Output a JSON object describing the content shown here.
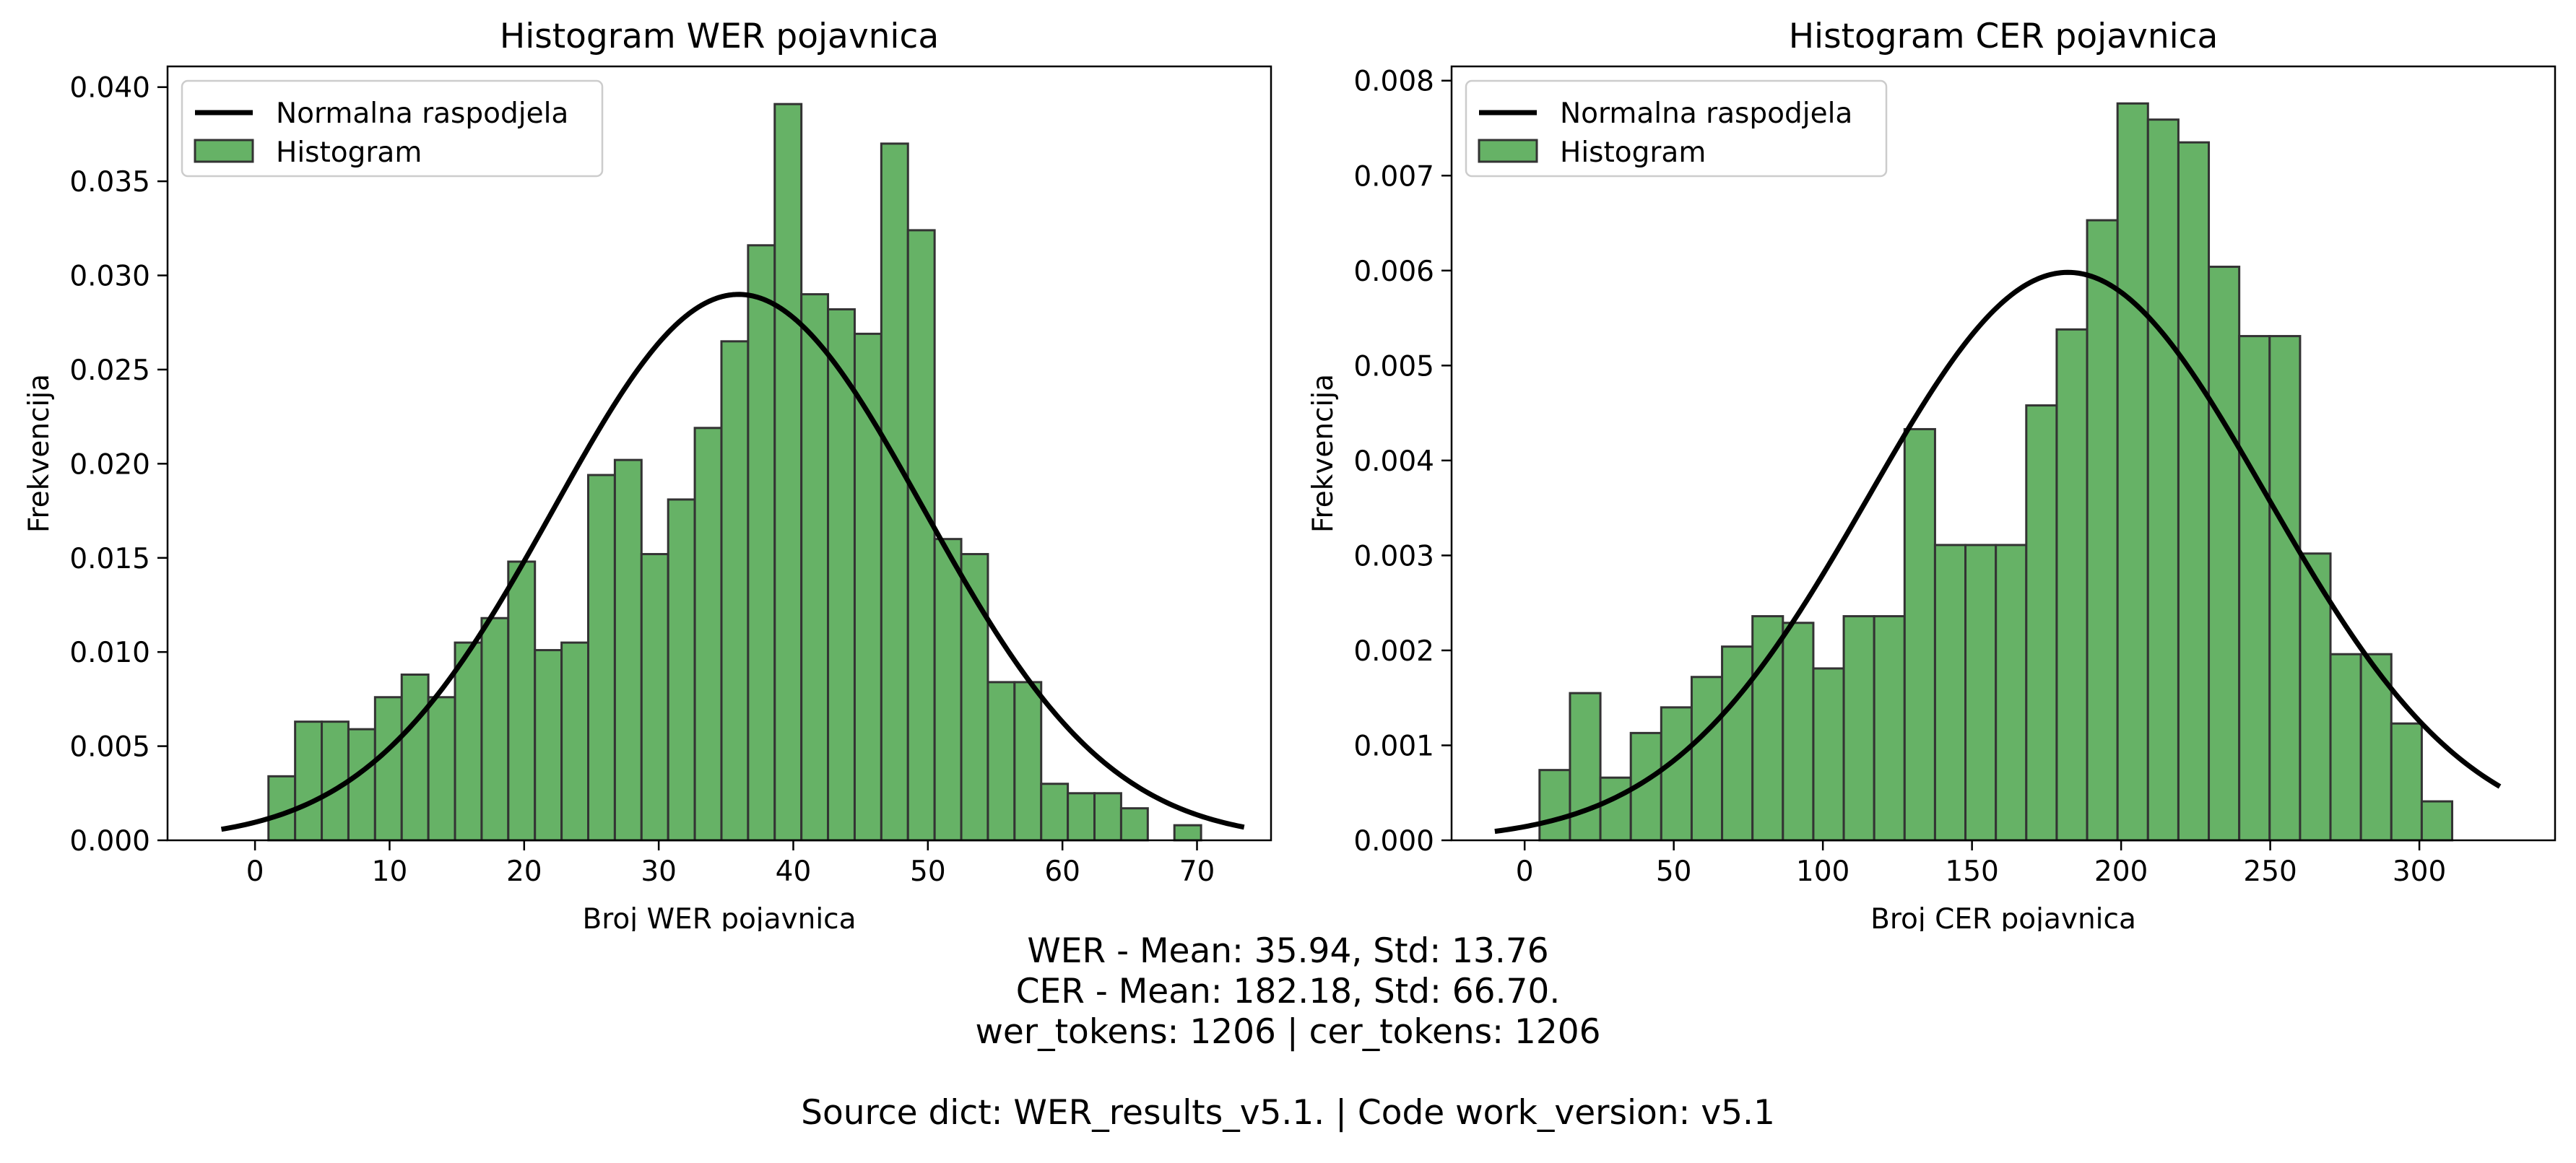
{
  "chart_data": [
    {
      "type": "bar",
      "id": "wer",
      "title": "Histogram WER pojavnica",
      "xlabel": "Broj WER pojavnica",
      "ylabel": "Frekvencija",
      "xlim": [
        -6.5,
        75.5
      ],
      "ylim": [
        0,
        0.0411
      ],
      "xticks": [
        0,
        10,
        20,
        30,
        40,
        50,
        60,
        70
      ],
      "yticks": [
        0.0,
        0.005,
        0.01,
        0.015,
        0.02,
        0.025,
        0.03,
        0.035,
        0.04
      ],
      "ytick_decimals": 3,
      "bar_color": "#66b266",
      "edge_color": "#333333",
      "curve_color": "#000000",
      "legend": {
        "position": "top-left",
        "entries": [
          "Normalna raspodjela",
          "Histogram"
        ]
      },
      "bins": {
        "start": 1,
        "width": 1.98,
        "values": [
          0.0034,
          0.0063,
          0.0063,
          0.0059,
          0.0076,
          0.0088,
          0.0076,
          0.0105,
          0.0118,
          0.0148,
          0.0101,
          0.0105,
          0.0194,
          0.0202,
          0.0152,
          0.0181,
          0.0219,
          0.0265,
          0.0316,
          0.0391,
          0.029,
          0.0282,
          0.0269,
          0.037,
          0.0324,
          0.016,
          0.0152,
          0.0084,
          0.0084,
          0.003,
          0.0025,
          0.0025,
          0.0017,
          0.0,
          0.0008
        ]
      },
      "normal": {
        "mean": 35.94,
        "std": 13.76,
        "xmin": -2.5,
        "xmax": 73.5
      }
    },
    {
      "type": "bar",
      "id": "cer",
      "title": "Histogram CER pojavnica",
      "xlabel": "Broj CER pojavnica",
      "ylabel": "Frekvencija",
      "xlim": [
        -24.5,
        345.5
      ],
      "ylim": [
        0,
        0.00815
      ],
      "xticks": [
        0,
        50,
        100,
        150,
        200,
        250,
        300
      ],
      "yticks": [
        0.0,
        0.001,
        0.002,
        0.003,
        0.004,
        0.005,
        0.006,
        0.007,
        0.008
      ],
      "ytick_decimals": 3,
      "bar_color": "#66b266",
      "edge_color": "#333333",
      "curve_color": "#000000",
      "legend": {
        "position": "top-left",
        "entries": [
          "Normalna raspodjela",
          "Histogram"
        ]
      },
      "bins": {
        "start": 5,
        "width": 10.2,
        "values": [
          0.00074,
          0.00155,
          0.00066,
          0.00113,
          0.0014,
          0.00172,
          0.00204,
          0.00236,
          0.00229,
          0.00181,
          0.00236,
          0.00236,
          0.00433,
          0.00311,
          0.00311,
          0.00311,
          0.00458,
          0.00538,
          0.00653,
          0.00776,
          0.00759,
          0.00735,
          0.00604,
          0.00531,
          0.00531,
          0.00302,
          0.00196,
          0.00196,
          0.00123,
          0.00041
        ]
      },
      "normal": {
        "mean": 182.18,
        "std": 66.7,
        "xmin": -10,
        "xmax": 327
      }
    }
  ],
  "caption": {
    "line1": "WER - Mean: 35.94, Std: 13.76",
    "line2": "CER - Mean: 182.18, Std: 66.70.",
    "line3": "wer_tokens: 1206 | cer_tokens: 1206",
    "line4": "Source dict: WER_results_v5.1. | Code work_version: v5.1"
  }
}
